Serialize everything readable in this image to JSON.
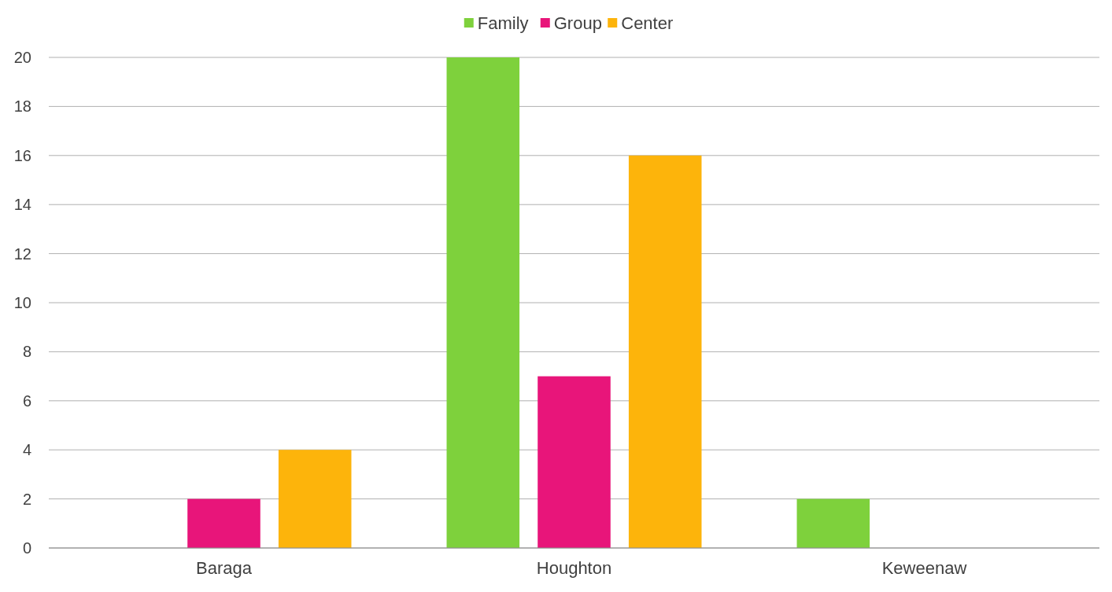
{
  "chart_data": {
    "type": "bar",
    "categories": [
      "Baraga",
      "Houghton",
      "Keweenaw"
    ],
    "series": [
      {
        "name": "Family",
        "color": "#7ed13c",
        "values": [
          0,
          20,
          2
        ]
      },
      {
        "name": "Group",
        "color": "#e8157a",
        "values": [
          2,
          7,
          0
        ]
      },
      {
        "name": "Center",
        "color": "#fdb40b",
        "values": [
          4,
          16,
          0
        ]
      }
    ],
    "ylim": [
      0,
      20
    ],
    "yticks": [
      0,
      2,
      4,
      6,
      8,
      10,
      12,
      14,
      16,
      18,
      20
    ],
    "grid": "y",
    "legend": "top"
  }
}
